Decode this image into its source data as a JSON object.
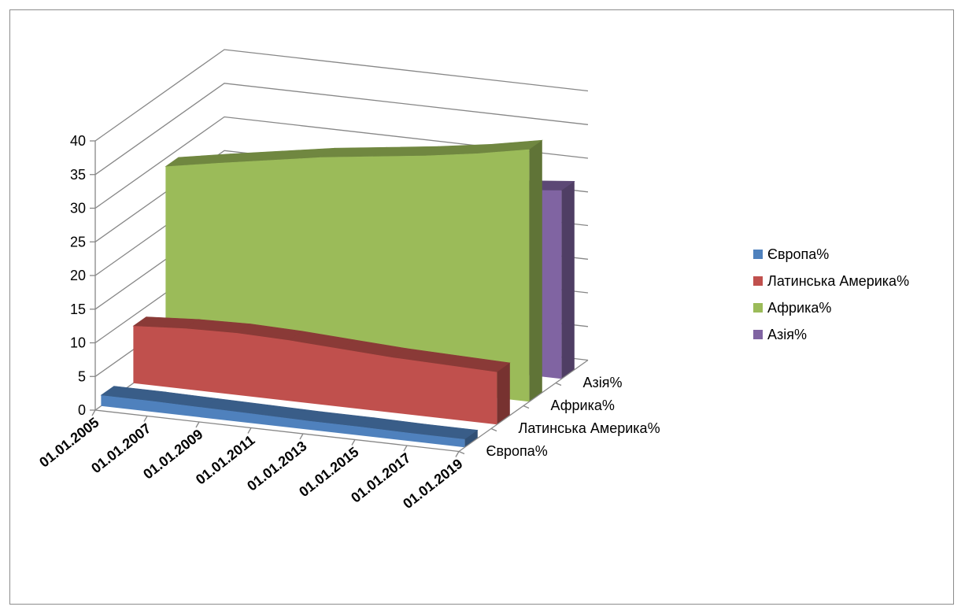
{
  "chart_data": {
    "type": "area",
    "title": "",
    "xlabel": "",
    "ylabel": "",
    "ylim": [
      0,
      40
    ],
    "y_ticks": [
      0,
      5,
      10,
      15,
      20,
      25,
      30,
      35,
      40
    ],
    "categories": [
      "01.01.2005",
      "01.01.2007",
      "01.01.2009",
      "01.01.2011",
      "01.01.2013",
      "01.01.2015",
      "01.01.2017",
      "01.01.2019"
    ],
    "depth_labels": [
      "Європа%",
      "Латинська Америка%",
      "Африка%",
      "Азія%"
    ],
    "legend_position": "right",
    "series": [
      {
        "name": "Європа%",
        "color": "#4f81bd",
        "values": [
          1.6,
          1.6,
          1.5,
          1.4,
          1.3,
          1.3,
          1.2,
          1.2
        ]
      },
      {
        "name": "Латинська Америка%",
        "color": "#c0504d",
        "values": [
          8.5,
          9.0,
          9.2,
          9.0,
          8.6,
          8.2,
          8.0,
          7.8
        ]
      },
      {
        "name": "Африка%",
        "color": "#9bbb59",
        "values": [
          28.8,
          30.2,
          31.5,
          32.8,
          33.8,
          34.8,
          36.0,
          37.5
        ]
      },
      {
        "name": "Азія%",
        "color": "#8064a2",
        "values": [
          24.0,
          24.5,
          25.0,
          25.5,
          26.0,
          26.5,
          27.2,
          28.0
        ]
      }
    ]
  }
}
